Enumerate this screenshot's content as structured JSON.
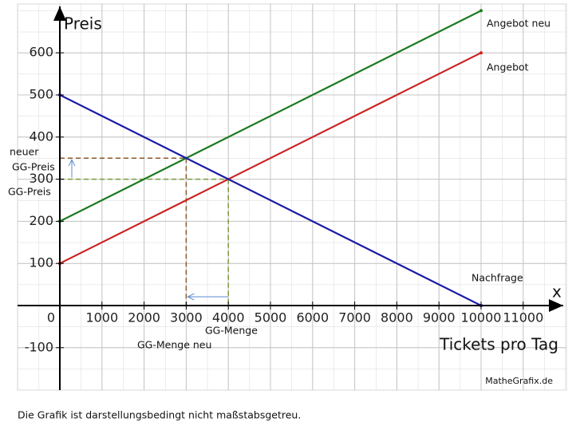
{
  "chart_data": {
    "type": "line",
    "y_label": "Preis",
    "x_axis_symbol": "x",
    "x_label": "Tickets pro Tag",
    "xlim": [
      -1000,
      12000
    ],
    "ylim": [
      -200,
      700
    ],
    "xticks": [
      0,
      1000,
      2000,
      3000,
      4000,
      5000,
      6000,
      7000,
      8000,
      9000,
      10000,
      11000
    ],
    "yticks": [
      -100,
      100,
      200,
      300,
      400,
      500,
      600
    ],
    "grid": true,
    "series": [
      {
        "name": "Angebot neu",
        "color": "#1e7b1e",
        "x": [
          0,
          10000
        ],
        "values": [
          200,
          700
        ]
      },
      {
        "name": "Angebot",
        "color": "#cc2222",
        "x": [
          0,
          10000
        ],
        "values": [
          100,
          600
        ]
      },
      {
        "name": "Nachfrage",
        "color": "#1c1ca8",
        "x": [
          0,
          10000
        ],
        "values": [
          500,
          0
        ]
      }
    ],
    "guides": [
      {
        "x": 3000,
        "y": 350,
        "color": "#8b5a2b"
      },
      {
        "x": 4000,
        "y": 300,
        "color": "#7a9a3a"
      }
    ],
    "annotations": [
      "neuer",
      "GG-Preis",
      "GG-Preis",
      "GG-Menge",
      "GG-Menge neu"
    ],
    "credit": "MatheGrafix.de",
    "footnote": "Die Grafik ist darstellungsbedingt nicht maßstabsgetreu."
  }
}
